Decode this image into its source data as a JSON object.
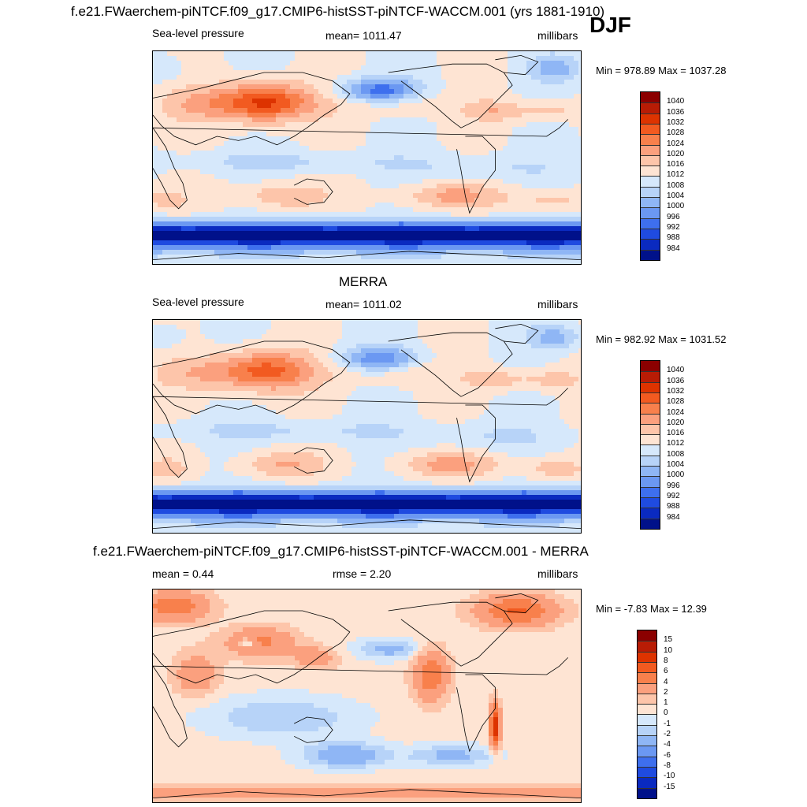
{
  "header": {
    "title": "f.e21.FWaerchem-piNTCF.f09_g17.CMIP6-histSST-piNTCF-WACCM.001 (yrs 1881-1910)",
    "season": "DJF"
  },
  "panels": [
    {
      "id": "model",
      "title": "",
      "left_label": "Sea-level pressure",
      "center_label": "mean= 1011.47",
      "right_label": "millibars",
      "minmax": "Min = 978.89 Max = 1037.28",
      "colorbar_ticks": [
        "1040",
        "1036",
        "1032",
        "1028",
        "1024",
        "1020",
        "1016",
        "1012",
        "1008",
        "1004",
        "1000",
        "996",
        "992",
        "988",
        "984"
      ],
      "colors": [
        "#8b0000",
        "#b81c05",
        "#dd3300",
        "#f25a20",
        "#f8804c",
        "#fba07e",
        "#fdc5aa",
        "#fee4d3",
        "#d6e8fb",
        "#b7d3f8",
        "#8fb6f5",
        "#6b98f2",
        "#3e6fee",
        "#1f4be0",
        "#0a2ac0",
        "#00118a"
      ]
    },
    {
      "id": "obs",
      "title": "MERRA",
      "left_label": "Sea-level pressure",
      "center_label": "mean= 1011.02",
      "right_label": "millibars",
      "minmax": "Min = 982.92 Max = 1031.52",
      "colorbar_ticks": [
        "1040",
        "1036",
        "1032",
        "1028",
        "1024",
        "1020",
        "1016",
        "1012",
        "1008",
        "1004",
        "1000",
        "996",
        "992",
        "988",
        "984"
      ],
      "colors": [
        "#8b0000",
        "#b81c05",
        "#dd3300",
        "#f25a20",
        "#f8804c",
        "#fba07e",
        "#fdc5aa",
        "#fee4d3",
        "#d6e8fb",
        "#b7d3f8",
        "#8fb6f5",
        "#6b98f2",
        "#3e6fee",
        "#1f4be0",
        "#0a2ac0",
        "#00118a"
      ]
    },
    {
      "id": "diff",
      "title": "f.e21.FWaerchem-piNTCF.f09_g17.CMIP6-histSST-piNTCF-WACCM.001 - MERRA",
      "left_label": "mean =   0.44",
      "center_label": "rmse =   2.20",
      "right_label": "millibars",
      "minmax": "Min =  -7.83 Max =  12.39",
      "colorbar_ticks": [
        "15",
        "10",
        "8",
        "6",
        "4",
        "2",
        "1",
        "0",
        "-1",
        "-2",
        "-4",
        "-6",
        "-8",
        "-10",
        "-15"
      ],
      "colors": [
        "#8b0000",
        "#b81c05",
        "#dd3300",
        "#f25a20",
        "#f8804c",
        "#fba07e",
        "#fdc5aa",
        "#fee4d3",
        "#d6e8fb",
        "#b7d3f8",
        "#8fb6f5",
        "#6b98f2",
        "#3e6fee",
        "#1f4be0",
        "#0a2ac0",
        "#00118a"
      ]
    }
  ],
  "chart_data": [
    {
      "type": "heatmap",
      "title": "f.e21.FWaerchem-piNTCF.f09_g17.CMIP6-histSST-piNTCF-WACCM.001 (yrs 1881-1910)",
      "variable": "Sea-level pressure",
      "units": "millibars",
      "mean": 1011.47,
      "min": 978.89,
      "max": 1037.28,
      "levels": [
        984,
        988,
        992,
        996,
        1000,
        1004,
        1008,
        1012,
        1016,
        1020,
        1024,
        1028,
        1032,
        1036,
        1040
      ]
    },
    {
      "type": "heatmap",
      "title": "MERRA",
      "variable": "Sea-level pressure",
      "units": "millibars",
      "mean": 1011.02,
      "min": 982.92,
      "max": 1031.52,
      "levels": [
        984,
        988,
        992,
        996,
        1000,
        1004,
        1008,
        1012,
        1016,
        1020,
        1024,
        1028,
        1032,
        1036,
        1040
      ]
    },
    {
      "type": "heatmap",
      "title": "f.e21.FWaerchem-piNTCF.f09_g17.CMIP6-histSST-piNTCF-WACCM.001 - MERRA",
      "units": "millibars",
      "mean": 0.44,
      "rmse": 2.2,
      "min": -7.83,
      "max": 12.39,
      "levels": [
        -15,
        -10,
        -8,
        -6,
        -4,
        -2,
        -1,
        0,
        1,
        2,
        4,
        6,
        8,
        10,
        15
      ]
    }
  ]
}
